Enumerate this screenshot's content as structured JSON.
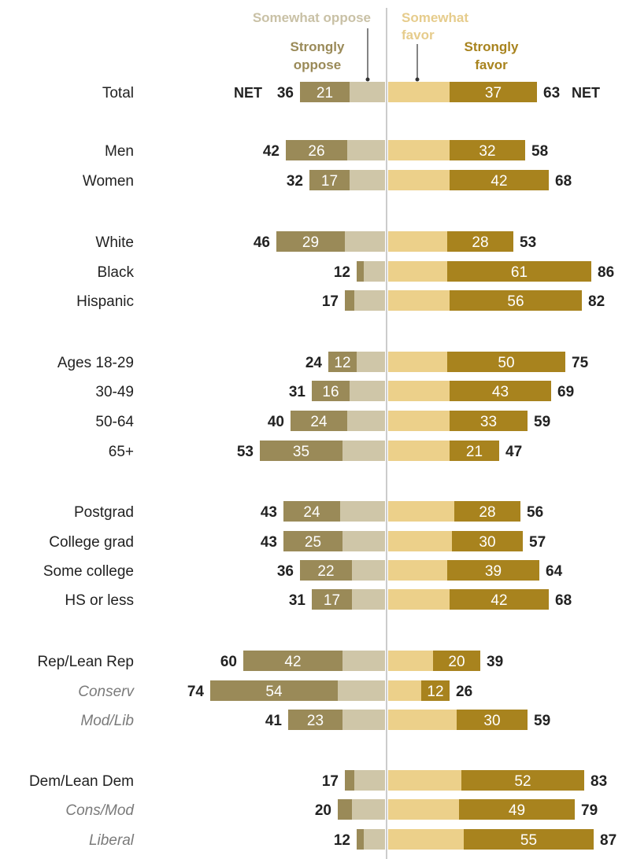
{
  "chart_data": {
    "type": "bar",
    "orientation": "horizontal-diverging",
    "legend": {
      "somewhat_oppose": "Somewhat oppose",
      "strongly_oppose_line1": "Strongly",
      "strongly_oppose_line2": "oppose",
      "somewhat_favor_line1": "Somewhat",
      "somewhat_favor_line2": "favor",
      "strongly_favor_line1": "Strongly",
      "strongly_favor_line2": "favor"
    },
    "net_label": "NET",
    "colors": {
      "strongly_oppose": "#9a8a58",
      "somewhat_oppose": "#cfc6a8",
      "somewhat_favor": "#ecd08a",
      "strongly_favor": "#a8831e",
      "legend_somewhat_oppose": "#c9c1a6",
      "legend_strongly_oppose": "#9a8a58",
      "legend_somewhat_favor": "#e6cc8c",
      "legend_strongly_favor": "#a8831e",
      "text": "#222222",
      "subgroup_text": "#7a7a7a",
      "divider": "#aaaaaa"
    },
    "rows": [
      {
        "label": "Total",
        "italic": false,
        "strongly_oppose": 21,
        "oppose_net": 36,
        "strongly_favor": 37,
        "favor_net": 63,
        "show_net": true,
        "show_so_label": true,
        "show_sf_label": true
      },
      {
        "label": "Men",
        "italic": false,
        "strongly_oppose": 26,
        "oppose_net": 42,
        "strongly_favor": 32,
        "favor_net": 58,
        "show_so_label": true,
        "show_sf_label": true
      },
      {
        "label": "Women",
        "italic": false,
        "strongly_oppose": 17,
        "oppose_net": 32,
        "strongly_favor": 42,
        "favor_net": 68,
        "show_so_label": true,
        "show_sf_label": true
      },
      {
        "label": "White",
        "italic": false,
        "strongly_oppose": 29,
        "oppose_net": 46,
        "strongly_favor": 28,
        "favor_net": 53,
        "show_so_label": true,
        "show_sf_label": true
      },
      {
        "label": "Black",
        "italic": false,
        "strongly_oppose": 3,
        "oppose_net": 12,
        "strongly_favor": 61,
        "favor_net": 86,
        "show_so_label": false,
        "show_sf_label": true
      },
      {
        "label": "Hispanic",
        "italic": false,
        "strongly_oppose": 4,
        "oppose_net": 17,
        "strongly_favor": 56,
        "favor_net": 82,
        "show_so_label": false,
        "show_sf_label": true
      },
      {
        "label": "Ages 18-29",
        "italic": false,
        "strongly_oppose": 12,
        "oppose_net": 24,
        "strongly_favor": 50,
        "favor_net": 75,
        "show_so_label": true,
        "show_sf_label": true
      },
      {
        "label": "30-49",
        "italic": false,
        "strongly_oppose": 16,
        "oppose_net": 31,
        "strongly_favor": 43,
        "favor_net": 69,
        "show_so_label": true,
        "show_sf_label": true
      },
      {
        "label": "50-64",
        "italic": false,
        "strongly_oppose": 24,
        "oppose_net": 40,
        "strongly_favor": 33,
        "favor_net": 59,
        "show_so_label": true,
        "show_sf_label": true
      },
      {
        "label": "65+",
        "italic": false,
        "strongly_oppose": 35,
        "oppose_net": 53,
        "strongly_favor": 21,
        "favor_net": 47,
        "show_so_label": true,
        "show_sf_label": true
      },
      {
        "label": "Postgrad",
        "italic": false,
        "strongly_oppose": 24,
        "oppose_net": 43,
        "strongly_favor": 28,
        "favor_net": 56,
        "show_so_label": true,
        "show_sf_label": true
      },
      {
        "label": "College grad",
        "italic": false,
        "strongly_oppose": 25,
        "oppose_net": 43,
        "strongly_favor": 30,
        "favor_net": 57,
        "show_so_label": true,
        "show_sf_label": true
      },
      {
        "label": "Some college",
        "italic": false,
        "strongly_oppose": 22,
        "oppose_net": 36,
        "strongly_favor": 39,
        "favor_net": 64,
        "show_so_label": true,
        "show_sf_label": true
      },
      {
        "label": "HS or less",
        "italic": false,
        "strongly_oppose": 17,
        "oppose_net": 31,
        "strongly_favor": 42,
        "favor_net": 68,
        "show_so_label": true,
        "show_sf_label": true
      },
      {
        "label": "Rep/Lean Rep",
        "italic": false,
        "strongly_oppose": 42,
        "oppose_net": 60,
        "strongly_favor": 20,
        "favor_net": 39,
        "show_so_label": true,
        "show_sf_label": true
      },
      {
        "label": "Conserv",
        "italic": true,
        "strongly_oppose": 54,
        "oppose_net": 74,
        "strongly_favor": 12,
        "favor_net": 26,
        "show_so_label": true,
        "show_sf_label": true
      },
      {
        "label": "Mod/Lib",
        "italic": true,
        "strongly_oppose": 23,
        "oppose_net": 41,
        "strongly_favor": 30,
        "favor_net": 59,
        "show_so_label": true,
        "show_sf_label": true
      },
      {
        "label": "Dem/Lean Dem",
        "italic": false,
        "strongly_oppose": 4,
        "oppose_net": 17,
        "strongly_favor": 52,
        "favor_net": 83,
        "show_so_label": false,
        "show_sf_label": true
      },
      {
        "label": "Cons/Mod",
        "italic": true,
        "strongly_oppose": 6,
        "oppose_net": 20,
        "strongly_favor": 49,
        "favor_net": 79,
        "show_so_label": false,
        "show_sf_label": true
      },
      {
        "label": "Liberal",
        "italic": true,
        "strongly_oppose": 3,
        "oppose_net": 12,
        "strongly_favor": 55,
        "favor_net": 87,
        "show_so_label": false,
        "show_sf_label": true
      }
    ]
  }
}
